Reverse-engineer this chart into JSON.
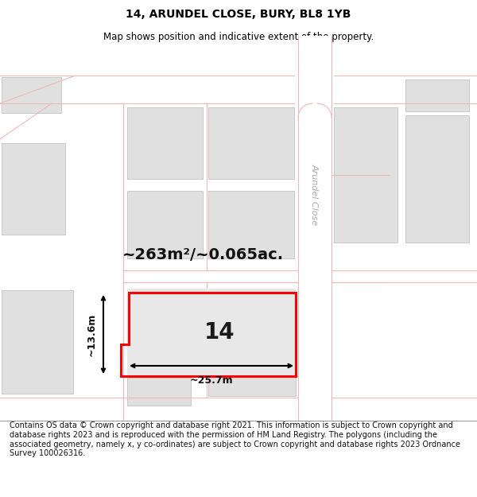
{
  "title": "14, ARUNDEL CLOSE, BURY, BL8 1YB",
  "subtitle": "Map shows position and indicative extent of the property.",
  "footer": "Contains OS data © Crown copyright and database right 2021. This information is subject to Crown copyright and database rights 2023 and is reproduced with the permission of HM Land Registry. The polygons (including the associated geometry, namely x, y co-ordinates) are subject to Crown copyright and database rights 2023 Ordnance Survey 100026316.",
  "area_label": "~263m²/~0.065ac.",
  "number_label": "14",
  "width_label": "~25.7m",
  "height_label": "~13.6m",
  "street_label": "Arundel Close",
  "road_color": "#f0b8b8",
  "building_fill": "#e0e0e0",
  "building_edge": "#c8c8c8",
  "highlight_color": "#ff0000",
  "bg_color": "#ffffff",
  "title_fontsize": 10,
  "subtitle_fontsize": 8.5,
  "footer_fontsize": 7.0,
  "area_fontsize": 14,
  "number_fontsize": 20,
  "dim_fontsize": 9,
  "street_fontsize": 8
}
